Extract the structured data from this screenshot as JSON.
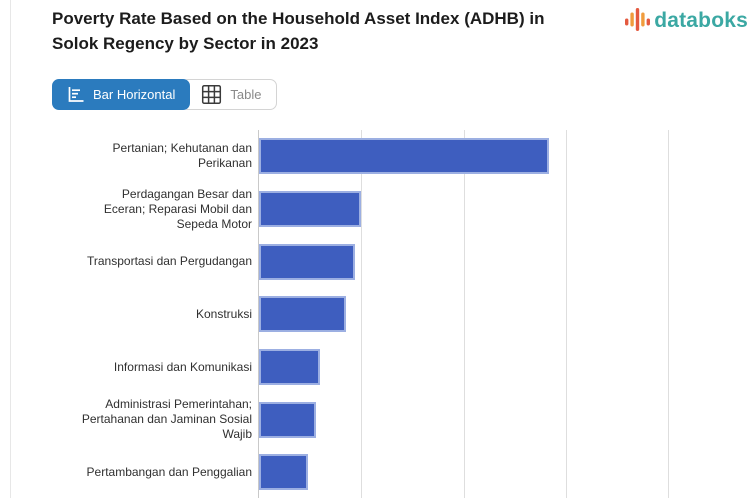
{
  "header": {
    "title_lines": [
      "Poverty Rate Based on the Household Asset Index (ADHB) in",
      "Solok Regency by Sector in 2023"
    ],
    "logo": {
      "text": "databoks",
      "text_color": "#3BA8A3",
      "icon": "databoks-pulse-bars-icon",
      "icon_colors": {
        "red": "#E4593F",
        "orange": "#F09C3D"
      }
    }
  },
  "toolbar": {
    "bar_horizontal_label": "Bar Horizontal",
    "table_label": "Table",
    "active_bg": "#2B7BBE",
    "inactive_text": "#8A8A8A"
  },
  "chart_data": {
    "type": "bar",
    "orientation": "horizontal",
    "title": "Poverty Rate Based on the Household Asset Index (ADHB) in Solok Regency by Sector in 2023",
    "categories": [
      "Pertanian; Kehutanan dan Perikanan",
      "Perdagangan Besar dan Eceran; Reparasi Mobil dan Sepeda Motor",
      "Transportasi dan Pergudangan",
      "Konstruksi",
      "Informasi dan Komunikasi",
      "Administrasi Pemerintahan; Pertahanan dan Jaminan Sosial Wajib",
      "Pertambangan dan Penggalian"
    ],
    "values": [
      2.83,
      1.0,
      0.94,
      0.85,
      0.6,
      0.56,
      0.48
    ],
    "value_axis": "not visible (cropped at bottom); values estimated in gridline units",
    "xlim": [
      0,
      4.83
    ],
    "gridline_positions": [
      1,
      2,
      3,
      4
    ],
    "bar_color": "#3E5EBF",
    "bar_stroke": "#9CAFE2",
    "gridline_color": "#DEDEDE",
    "axis_line_color": "#C9C9C9",
    "grid": true,
    "legend": false
  }
}
